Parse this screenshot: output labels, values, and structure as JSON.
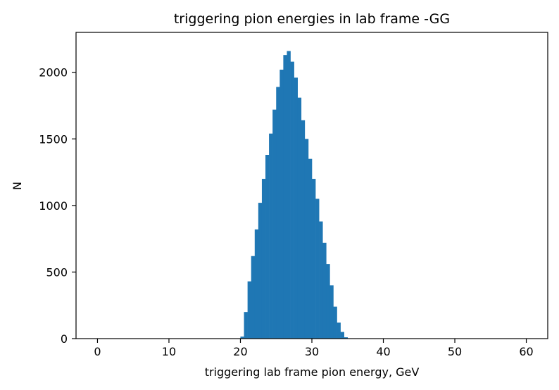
{
  "chart_data": {
    "type": "histogram",
    "title": "triggering pion energies in lab frame -GG",
    "xlabel": "triggering lab frame pion energy, GeV",
    "ylabel": "N",
    "xlim": [
      -3,
      63
    ],
    "ylim": [
      0,
      2300
    ],
    "x_ticks": [
      0,
      10,
      20,
      30,
      40,
      50,
      60
    ],
    "y_ticks": [
      0,
      500,
      1000,
      1500,
      2000
    ],
    "bar_color": "#1f77b4",
    "bin_width": 0.5,
    "bins": [
      {
        "x": 20.0,
        "value": 15
      },
      {
        "x": 20.5,
        "value": 200
      },
      {
        "x": 21.0,
        "value": 430
      },
      {
        "x": 21.5,
        "value": 620
      },
      {
        "x": 22.0,
        "value": 820
      },
      {
        "x": 22.5,
        "value": 1020
      },
      {
        "x": 23.0,
        "value": 1200
      },
      {
        "x": 23.5,
        "value": 1380
      },
      {
        "x": 24.0,
        "value": 1540
      },
      {
        "x": 24.5,
        "value": 1720
      },
      {
        "x": 25.0,
        "value": 1890
      },
      {
        "x": 25.5,
        "value": 2020
      },
      {
        "x": 26.0,
        "value": 2130
      },
      {
        "x": 26.5,
        "value": 2160
      },
      {
        "x": 27.0,
        "value": 2080
      },
      {
        "x": 27.5,
        "value": 1960
      },
      {
        "x": 28.0,
        "value": 1810
      },
      {
        "x": 28.5,
        "value": 1640
      },
      {
        "x": 29.0,
        "value": 1500
      },
      {
        "x": 29.5,
        "value": 1350
      },
      {
        "x": 30.0,
        "value": 1200
      },
      {
        "x": 30.5,
        "value": 1050
      },
      {
        "x": 31.0,
        "value": 880
      },
      {
        "x": 31.5,
        "value": 720
      },
      {
        "x": 32.0,
        "value": 560
      },
      {
        "x": 32.5,
        "value": 400
      },
      {
        "x": 33.0,
        "value": 240
      },
      {
        "x": 33.5,
        "value": 120
      },
      {
        "x": 34.0,
        "value": 50
      },
      {
        "x": 34.5,
        "value": 10
      }
    ]
  }
}
